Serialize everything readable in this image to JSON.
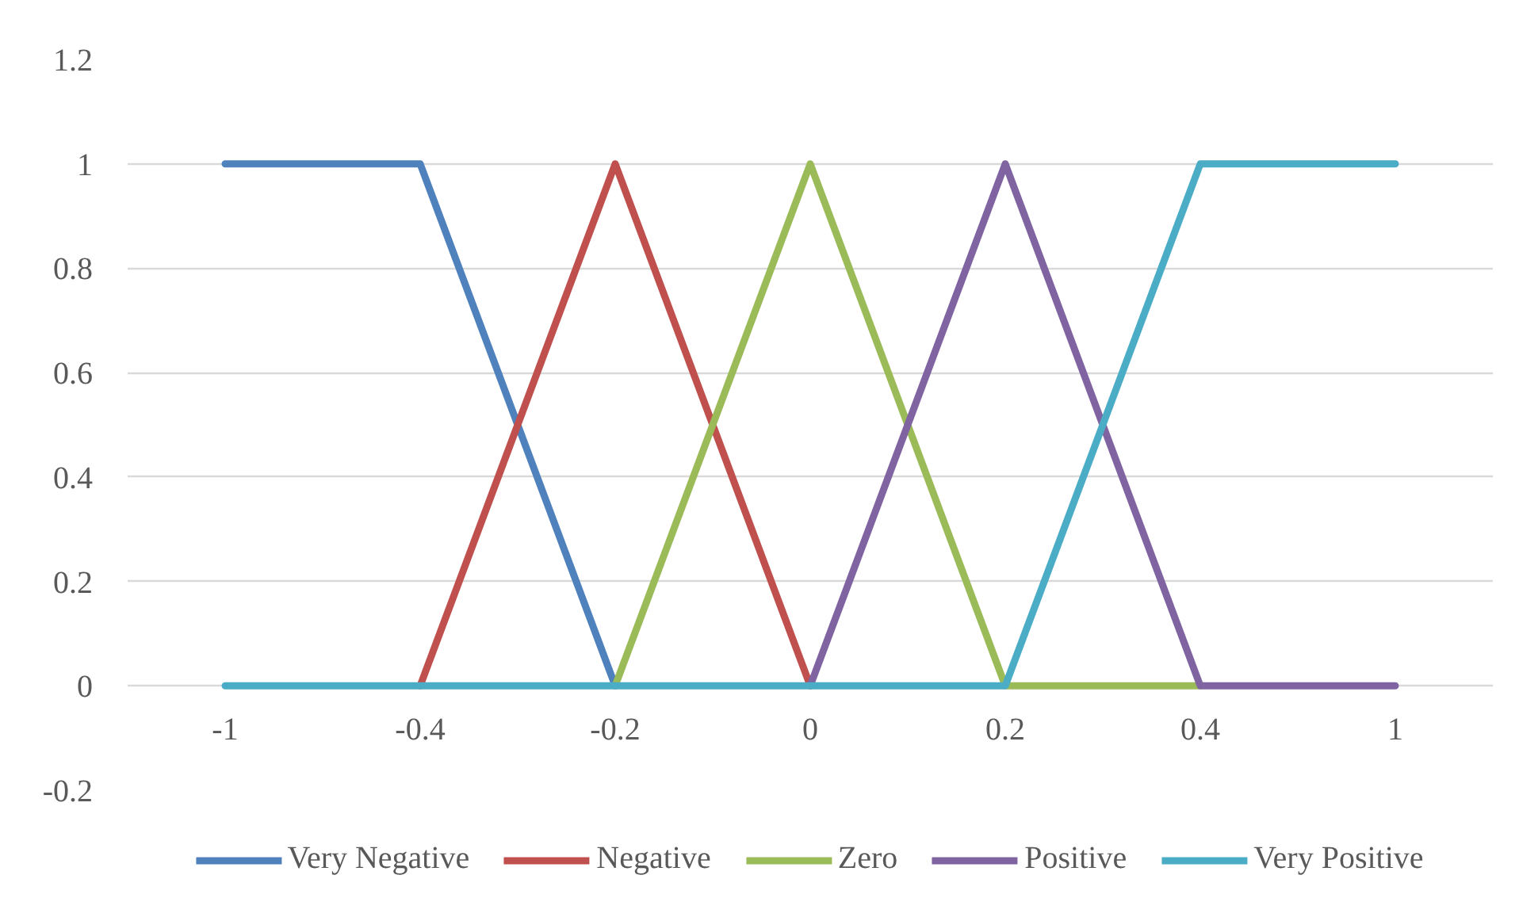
{
  "chart_data": {
    "type": "line",
    "categories": [
      "-1",
      "-0.4",
      "-0.2",
      "0",
      "0.2",
      "0.4",
      "1"
    ],
    "series": [
      {
        "name": "Very Negative",
        "color": "#4f81bd",
        "values": [
          1,
          1,
          0,
          null,
          null,
          null,
          null
        ]
      },
      {
        "name": "Negative",
        "color": "#c0504d",
        "values": [
          null,
          0,
          1,
          0,
          null,
          null,
          null
        ]
      },
      {
        "name": "Zero",
        "color": "#9bbb59",
        "values": [
          null,
          null,
          0,
          1,
          0,
          0,
          null
        ]
      },
      {
        "name": "Positive",
        "color": "#8064a2",
        "values": [
          null,
          null,
          null,
          0,
          1,
          0,
          0
        ]
      },
      {
        "name": "Very Positive",
        "color": "#4bacc6",
        "values": [
          0,
          0,
          0,
          0,
          0,
          1,
          1
        ]
      }
    ],
    "ylim": [
      -0.2,
      1.2
    ],
    "yticks": [
      -0.2,
      0,
      0.2,
      0.4,
      0.6,
      0.8,
      1,
      1.2
    ],
    "grid": "y",
    "legend": "bottom"
  }
}
